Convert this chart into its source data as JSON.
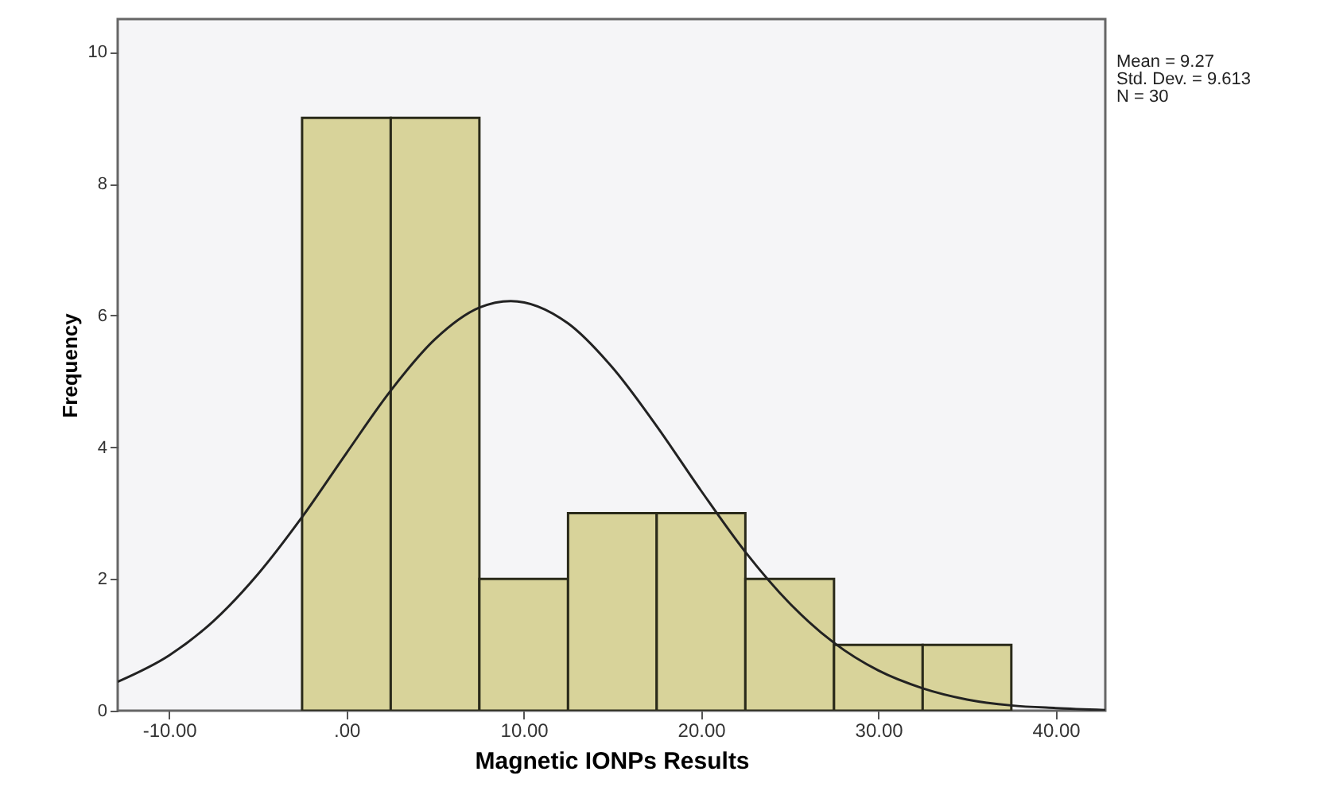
{
  "chart_data": {
    "type": "histogram",
    "xlabel": "Magnetic IONPs Results",
    "ylabel": "Frequency",
    "bins": [
      -2.5,
      2.5,
      7.5,
      12.5,
      17.5,
      22.5,
      27.5,
      32.5,
      37.5
    ],
    "values": [
      9,
      9,
      2,
      3,
      3,
      2,
      1,
      1
    ],
    "color": "#d8d39a",
    "series": [
      {
        "type": "line",
        "color": "#222222",
        "x": [
          -12.9,
          -10,
          -7.5,
          -5,
          -2.5,
          0,
          2.5,
          5,
          7.5,
          9.27,
          12.5,
          15,
          17.5,
          20,
          22.5,
          25,
          27.5,
          30,
          32.5,
          35,
          37.5,
          40,
          42.8
        ],
        "values": [
          0.44,
          0.84,
          1.36,
          2.07,
          2.94,
          3.91,
          4.86,
          5.64,
          6.12,
          6.22,
          5.88,
          5.21,
          4.32,
          3.34,
          2.41,
          1.63,
          1.03,
          0.61,
          0.34,
          0.17,
          0.08,
          0.04,
          0.01
        ]
      }
    ],
    "xlim": [
      -12.9,
      42.8
    ],
    "xticks": [
      {
        "value": -10,
        "label": "-10.00"
      },
      {
        "value": 0,
        "label": ".00"
      },
      {
        "value": 10,
        "label": "10.00"
      },
      {
        "value": 20,
        "label": "20.00"
      },
      {
        "value": 30,
        "label": "30.00"
      },
      {
        "value": 40,
        "label": "40.00"
      }
    ],
    "ylim": [
      0,
      10.5
    ],
    "yticks": [
      0,
      2,
      4,
      6,
      8,
      10
    ],
    "grid": false,
    "annotations": [
      "Mean = 9.27",
      "Std. Dev. = 9.613",
      "N = 30"
    ]
  }
}
